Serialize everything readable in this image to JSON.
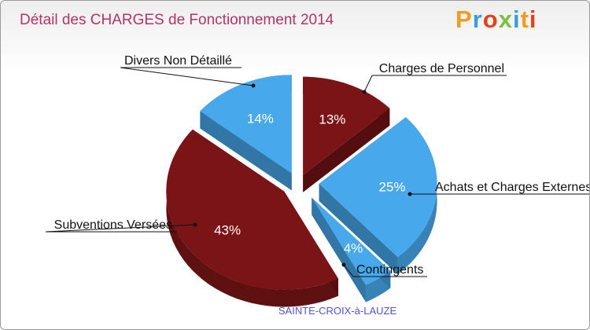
{
  "title": "Détail des CHARGES de Fonctionnement 2014",
  "logo": {
    "letters": [
      "P",
      "r",
      "o",
      "x",
      "i",
      "t",
      "i"
    ],
    "colors": [
      "#f39b1e",
      "#37a0dc",
      "#e8401c",
      "#7ac142",
      "#37a0dc",
      "#f39b1e",
      "#e8401c"
    ]
  },
  "chart_data": {
    "type": "pie",
    "title": "Détail des CHARGES de Fonctionnement 2014",
    "subtitle": "SAINTE-CROIX-à-LAUZE",
    "slices": [
      {
        "label": "Charges de Personnel",
        "percent": "13%",
        "value": 13,
        "color": "#7a1416"
      },
      {
        "label": "Achats et Charges Externes",
        "percent": "25%",
        "value": 25,
        "color": "#47a8ec"
      },
      {
        "label": "Contingents",
        "percent": "4%",
        "value": 4,
        "color": "#47a8ec"
      },
      {
        "label": "Subventions Versées",
        "percent": "43%",
        "value": 43,
        "color": "#7a1416"
      },
      {
        "label": "Divers Non Détaillé",
        "percent": "14%",
        "value": 14,
        "color": "#47a8ec"
      }
    ]
  }
}
